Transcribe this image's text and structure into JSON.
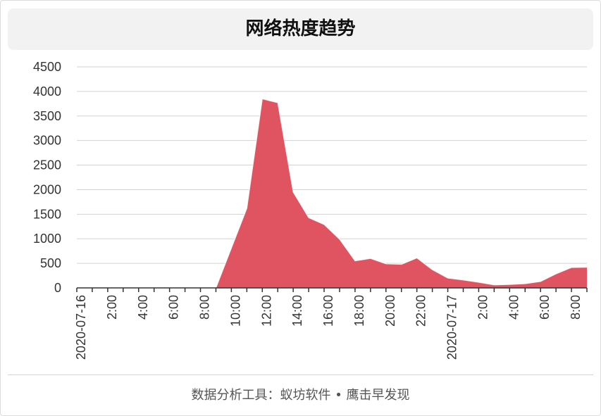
{
  "footer": "数据分析工具：蚁坊软件 • 鹰击早发现",
  "chart_data": {
    "type": "area",
    "title": "网络热度趋势",
    "xlabel": "",
    "ylabel": "",
    "color": "#e05360",
    "grid": true,
    "legend": "none",
    "ylim": [
      0,
      4500
    ],
    "y_ticks": [
      0,
      500,
      1000,
      1500,
      2000,
      2500,
      3000,
      3500,
      4000,
      4500
    ],
    "x": [
      "2020-07-16 00:00",
      "2020-07-16 01:00",
      "2020-07-16 02:00",
      "2020-07-16 03:00",
      "2020-07-16 04:00",
      "2020-07-16 05:00",
      "2020-07-16 06:00",
      "2020-07-16 07:00",
      "2020-07-16 08:00",
      "2020-07-16 09:00",
      "2020-07-16 10:00",
      "2020-07-16 11:00",
      "2020-07-16 12:00",
      "2020-07-16 13:00",
      "2020-07-16 14:00",
      "2020-07-16 15:00",
      "2020-07-16 16:00",
      "2020-07-16 17:00",
      "2020-07-16 18:00",
      "2020-07-16 19:00",
      "2020-07-16 20:00",
      "2020-07-16 21:00",
      "2020-07-16 22:00",
      "2020-07-16 23:00",
      "2020-07-17 00:00",
      "2020-07-17 01:00",
      "2020-07-17 02:00",
      "2020-07-17 03:00",
      "2020-07-17 04:00",
      "2020-07-17 05:00",
      "2020-07-17 06:00",
      "2020-07-17 07:00",
      "2020-07-17 08:00",
      "2020-07-17 09:00"
    ],
    "values": [
      0,
      0,
      0,
      0,
      0,
      0,
      0,
      0,
      0,
      0,
      810,
      1620,
      3850,
      3770,
      1950,
      1430,
      1290,
      990,
      550,
      600,
      490,
      480,
      610,
      370,
      200,
      160,
      115,
      60,
      70,
      85,
      130,
      285,
      415,
      420
    ],
    "x_ticks": [
      {
        "x": "2020-07-16 00:00",
        "label": "2020-07-16"
      },
      {
        "x": "2020-07-16 02:00",
        "label": "2:00"
      },
      {
        "x": "2020-07-16 04:00",
        "label": "4:00"
      },
      {
        "x": "2020-07-16 06:00",
        "label": "6:00"
      },
      {
        "x": "2020-07-16 08:00",
        "label": "8:00"
      },
      {
        "x": "2020-07-16 10:00",
        "label": "10:00"
      },
      {
        "x": "2020-07-16 12:00",
        "label": "12:00"
      },
      {
        "x": "2020-07-16 14:00",
        "label": "14:00"
      },
      {
        "x": "2020-07-16 16:00",
        "label": "16:00"
      },
      {
        "x": "2020-07-16 18:00",
        "label": "18:00"
      },
      {
        "x": "2020-07-16 20:00",
        "label": "20:00"
      },
      {
        "x": "2020-07-16 22:00",
        "label": "22:00"
      },
      {
        "x": "2020-07-17 00:00",
        "label": "2020-07-17"
      },
      {
        "x": "2020-07-17 02:00",
        "label": "2:00"
      },
      {
        "x": "2020-07-17 04:00",
        "label": "4:00"
      },
      {
        "x": "2020-07-17 06:00",
        "label": "6:00"
      },
      {
        "x": "2020-07-17 08:00",
        "label": "8:00"
      }
    ]
  }
}
